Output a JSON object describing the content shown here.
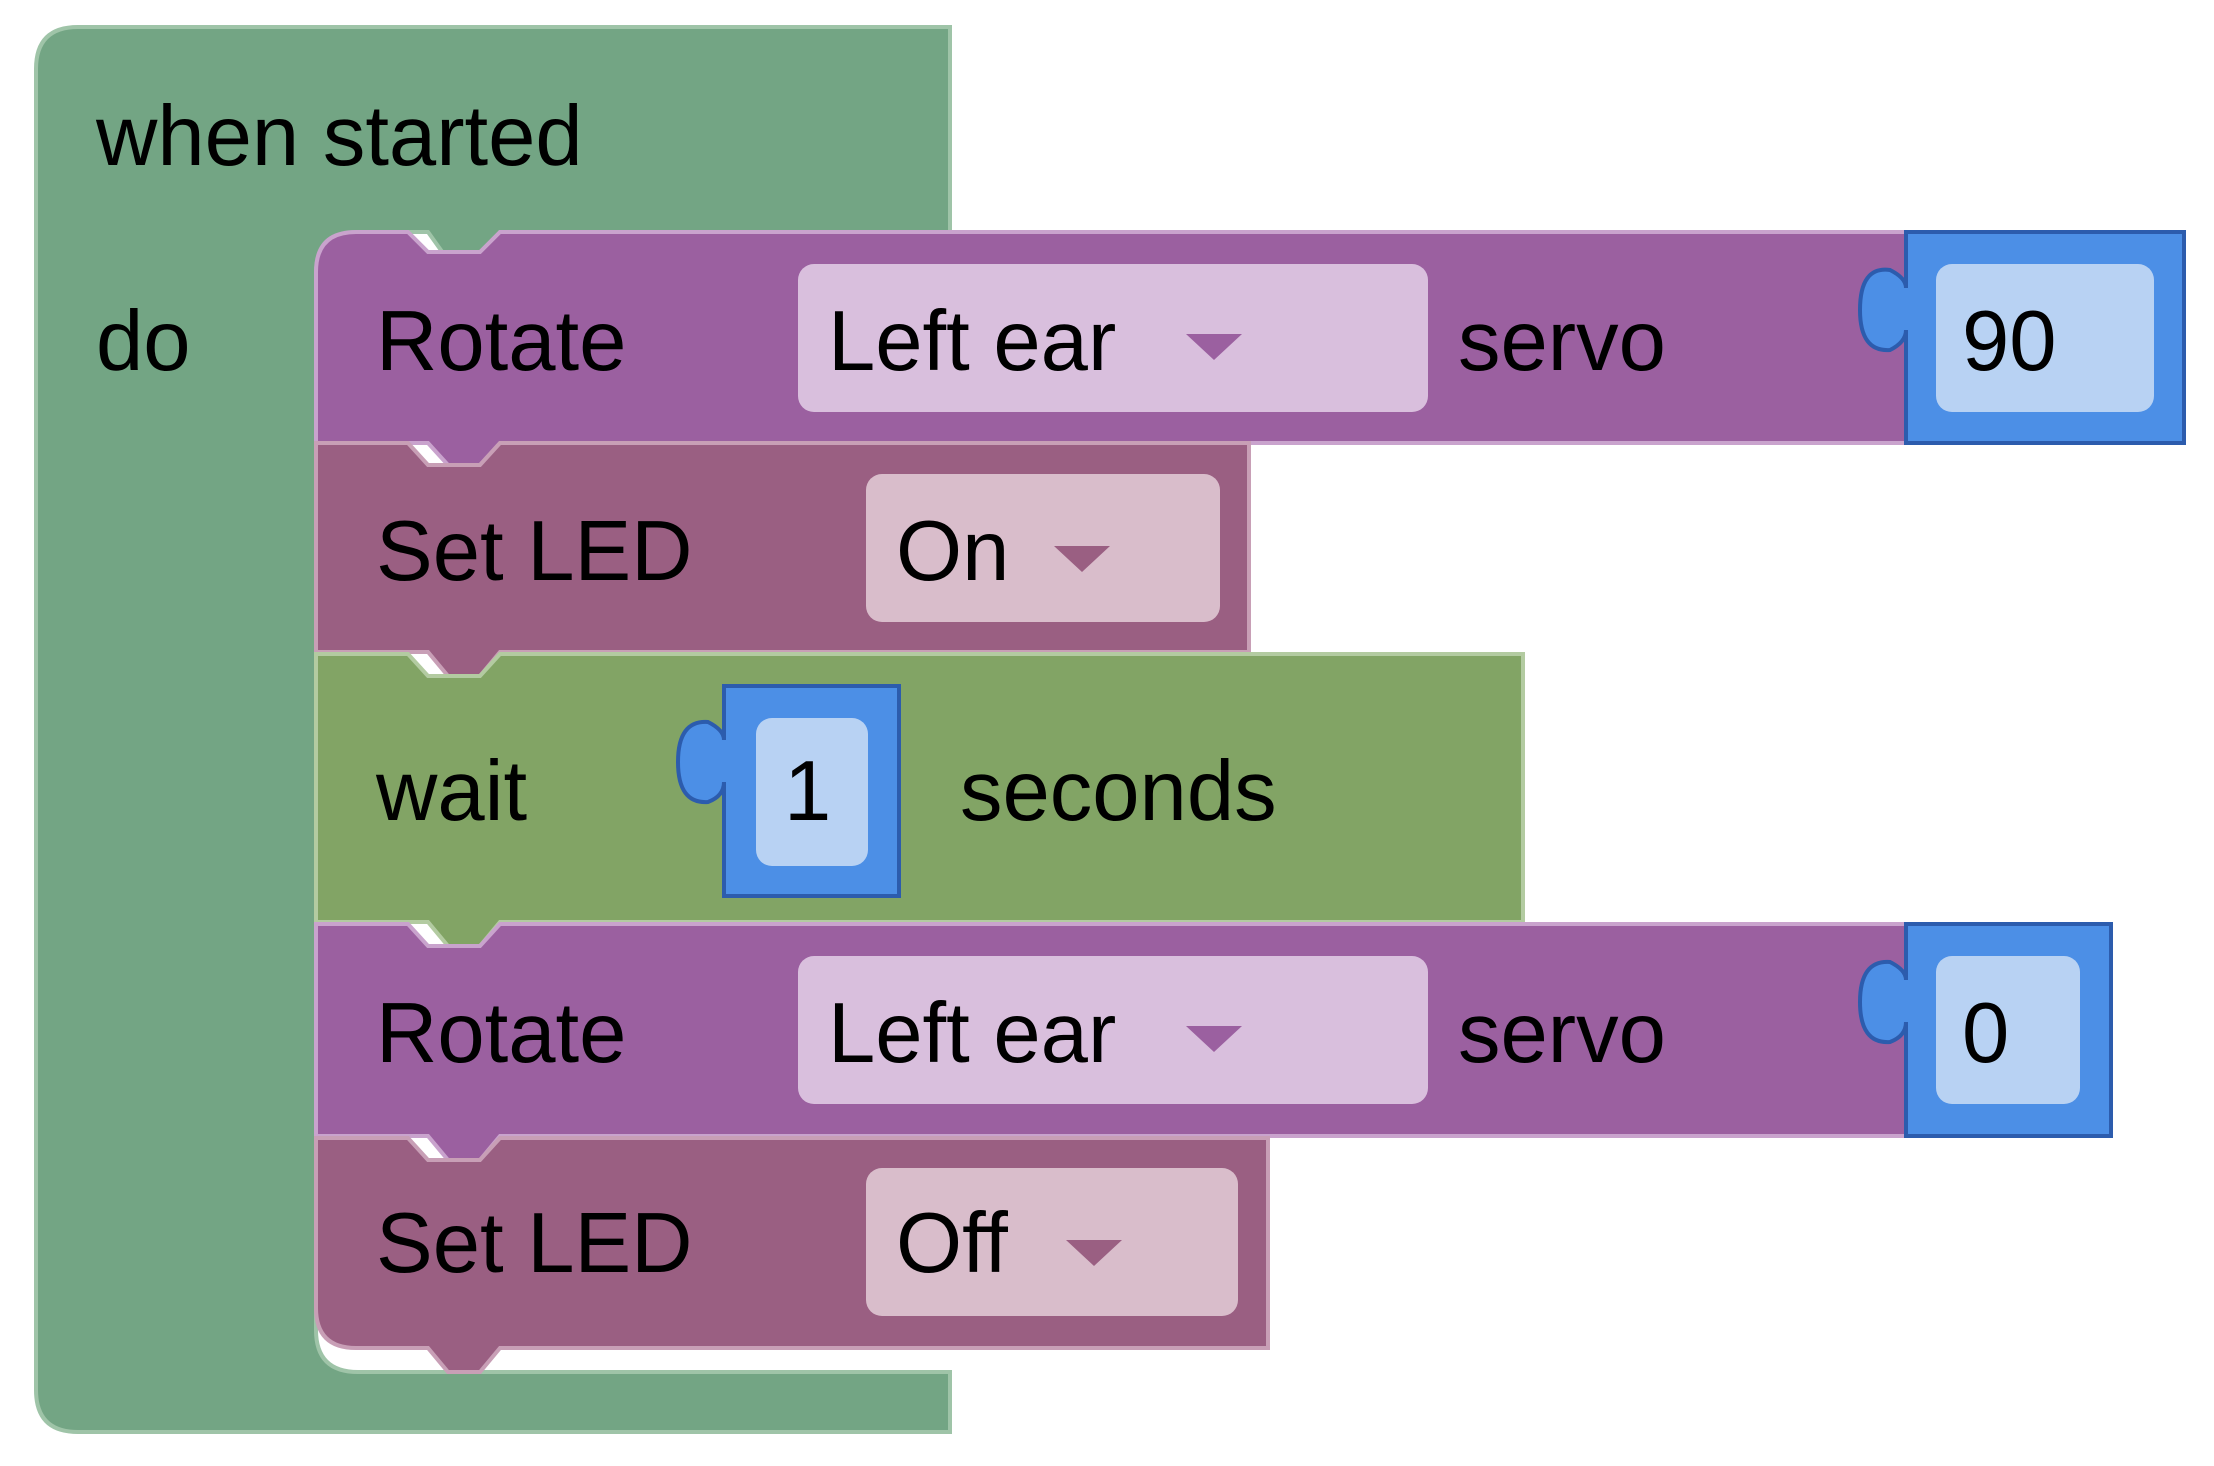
{
  "colors": {
    "event_block": "#73a584",
    "event_border": "#9fc4a8",
    "rotate_block": "#9b60a0",
    "rotate_border": "#c9a3cd",
    "led_block": "#9a5f82",
    "led_border": "#c89fb6",
    "wait_block": "#82a465",
    "wait_border": "#b3cba1",
    "dropdown_rotate": "#d9bfdd",
    "dropdown_led": "#d9bdcb",
    "dropdown_arrow": "#9b60a0",
    "number_block": "#4c8fe6",
    "number_border": "#2c5cad",
    "number_field": "#b8d2f3"
  },
  "event": {
    "title": "when started",
    "do_label": "do"
  },
  "blocks": [
    {
      "type": "rotate",
      "label": "Rotate",
      "dropdown_value": "Left ear",
      "dropdown_icon": "chevron-down-icon",
      "suffix": "servo",
      "number_value": "90"
    },
    {
      "type": "set_led",
      "label": "Set LED",
      "dropdown_value": "On",
      "dropdown_icon": "chevron-down-icon"
    },
    {
      "type": "wait",
      "label": "wait",
      "number_value": "1",
      "suffix": "seconds"
    },
    {
      "type": "rotate",
      "label": "Rotate",
      "dropdown_value": "Left ear",
      "dropdown_icon": "chevron-down-icon",
      "suffix": "servo",
      "number_value": "0"
    },
    {
      "type": "set_led",
      "label": "Set LED",
      "dropdown_value": "Off",
      "dropdown_icon": "chevron-down-icon"
    }
  ]
}
